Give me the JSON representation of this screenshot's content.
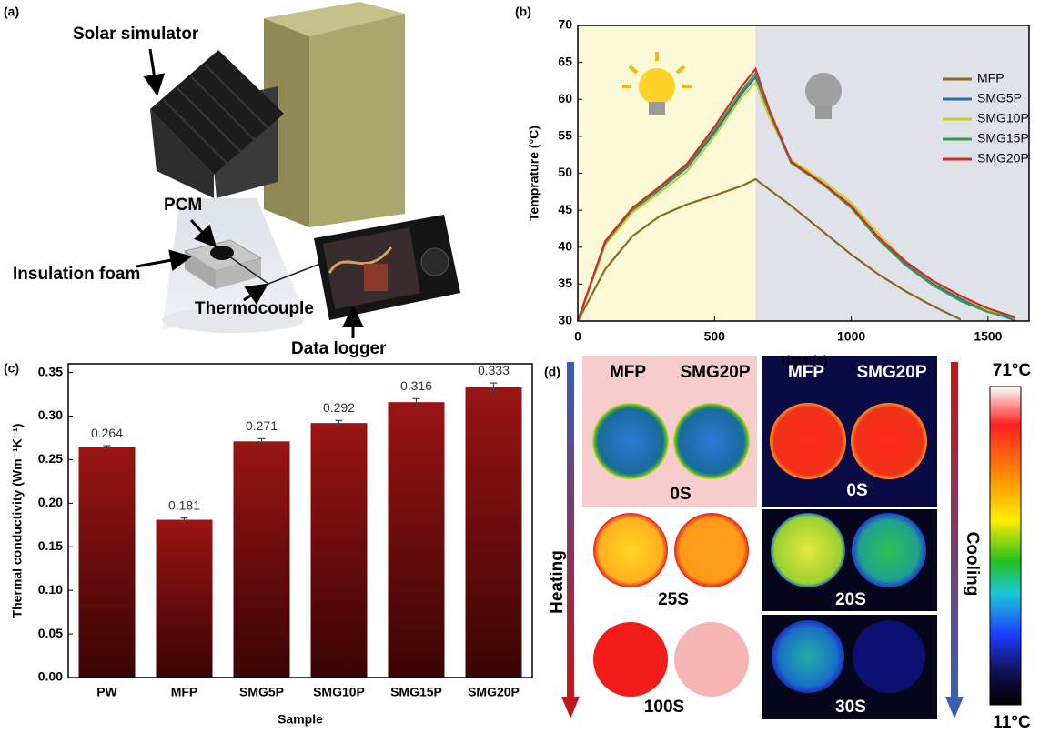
{
  "panels": {
    "a": {
      "label": "(a)",
      "callouts": [
        "Solar simulator",
        "PCM",
        "Insulation foam",
        "Thermocouple",
        "Data logger"
      ]
    },
    "d": {
      "label": "(d)",
      "heating": {
        "direction": "Heating",
        "samples": [
          "MFP",
          "SMG20P"
        ],
        "times": [
          "0S",
          "25S",
          "100S"
        ]
      },
      "cooling": {
        "direction": "Cooling",
        "samples": [
          "MFP",
          "SMG20P"
        ],
        "times": [
          "0S",
          "20S",
          "30S"
        ]
      },
      "colorbar": {
        "max": "71°C",
        "min": "11°C"
      }
    }
  },
  "chart_data": [
    {
      "type": "line",
      "panel_label": "(b)",
      "x_label": "Time (s)",
      "y_label": "Temprature (°C)",
      "x": [
        0,
        100,
        200,
        300,
        400,
        500,
        600,
        650,
        700,
        780,
        900,
        1000,
        1100,
        1200,
        1300,
        1400,
        1500,
        1600
      ],
      "series": [
        {
          "name": "MFP",
          "color": "#8c6a1d",
          "values": [
            30,
            37,
            41.5,
            44.2,
            45.8,
            47,
            48.3,
            49.2,
            47.8,
            45.6,
            42,
            39,
            36.3,
            34,
            32,
            30.2,
            null,
            null
          ]
        },
        {
          "name": "SMG5P",
          "color": "#2a6bb5",
          "values": [
            30,
            40.5,
            45,
            47.8,
            50.8,
            55.5,
            60.8,
            63,
            58,
            51.5,
            48.5,
            45.5,
            41.2,
            37.8,
            35,
            33,
            31.3,
            30.1
          ]
        },
        {
          "name": "SMG10P",
          "color": "#c9cf2b",
          "values": [
            30,
            40.3,
            44.7,
            47.4,
            50.3,
            55,
            60.3,
            62.3,
            57.6,
            51.8,
            48.9,
            46,
            41.8,
            38,
            35.3,
            33.3,
            31.5,
            30.3
          ]
        },
        {
          "name": "SMG15P",
          "color": "#3a9a4a",
          "values": [
            30,
            40.6,
            45.1,
            47.9,
            51,
            55.8,
            61.2,
            63.5,
            58.3,
            51.4,
            48.4,
            45.3,
            41,
            37.5,
            34.8,
            32.7,
            31.2,
            30.4
          ]
        },
        {
          "name": "SMG20P",
          "color": "#d42a2a",
          "values": [
            30,
            40.8,
            45.3,
            48.2,
            51.3,
            56.3,
            61.8,
            64.1,
            58.6,
            51.6,
            48.5,
            45.6,
            41.3,
            38,
            35.4,
            33.4,
            31.7,
            30.5
          ]
        }
      ],
      "xlim": [
        0,
        1650
      ],
      "xticks": [
        0,
        500,
        1000,
        1500
      ],
      "ylim": [
        30,
        70
      ],
      "yticks": [
        30,
        35,
        40,
        45,
        50,
        55,
        60,
        65,
        70
      ],
      "shaded_regions": [
        {
          "x": [
            0,
            650
          ],
          "color": "#fcfad6"
        },
        {
          "x": [
            650,
            1650
          ],
          "color": "#dfe2e9"
        }
      ],
      "legend": "upper right"
    },
    {
      "type": "bar",
      "panel_label": "(c)",
      "x_label": "Sample",
      "y_label": "Thermal conductivity (Wm⁻¹K⁻¹)",
      "categories": [
        "PW",
        "MFP",
        "SMG5P",
        "SMG10P",
        "SMG15P",
        "SMG20P"
      ],
      "values": [
        0.264,
        0.181,
        0.271,
        0.292,
        0.316,
        0.333
      ],
      "errors": [
        0.002,
        0.002,
        0.003,
        0.003,
        0.004,
        0.005
      ],
      "color": "#9a1414",
      "ylim": [
        0,
        0.36
      ],
      "yticks": [
        {
          "value": 0,
          "label": "0.00"
        },
        {
          "value": 0.05,
          "label": "0.05"
        },
        {
          "value": 0.1,
          "label": "0.10"
        },
        {
          "value": 0.15,
          "label": "0.15"
        },
        {
          "value": 0.2,
          "label": "0.20"
        },
        {
          "value": 0.25,
          "label": "0.25"
        },
        {
          "value": 0.3,
          "label": "0.30"
        },
        {
          "value": 0.35,
          "label": "0.35"
        }
      ]
    }
  ]
}
